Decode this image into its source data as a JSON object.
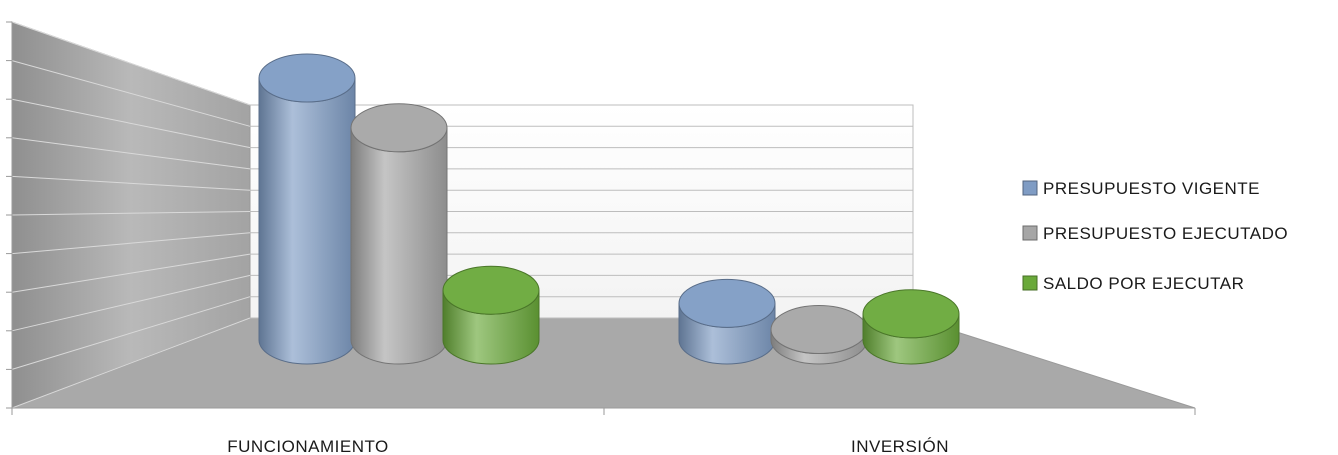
{
  "colors": {
    "series": [
      "#7f9cc4",
      "#a6a6a6",
      "#6aa93a"
    ],
    "back_wall": "#ffffff",
    "side_wall": "#a9a9a9",
    "floor": "#a9a9a9",
    "gridline": "#bdbdbd"
  },
  "chart_data": {
    "type": "bar",
    "style": "3d-cylinder",
    "title": "",
    "xlabel": "",
    "ylabel": "",
    "categories": [
      "FUNCIONAMIENTO",
      "INVERSIÓN"
    ],
    "series": [
      {
        "name": "PRESUPUESTO VIGENTE",
        "values": [
          100,
          14
        ]
      },
      {
        "name": "PRESUPUESTO EJECUTADO",
        "values": [
          81,
          4
        ]
      },
      {
        "name": "SALDO POR EJECUTAR",
        "values": [
          19,
          10
        ]
      }
    ],
    "ylim": [
      0,
      100
    ],
    "grid": true,
    "legend_position": "right"
  }
}
